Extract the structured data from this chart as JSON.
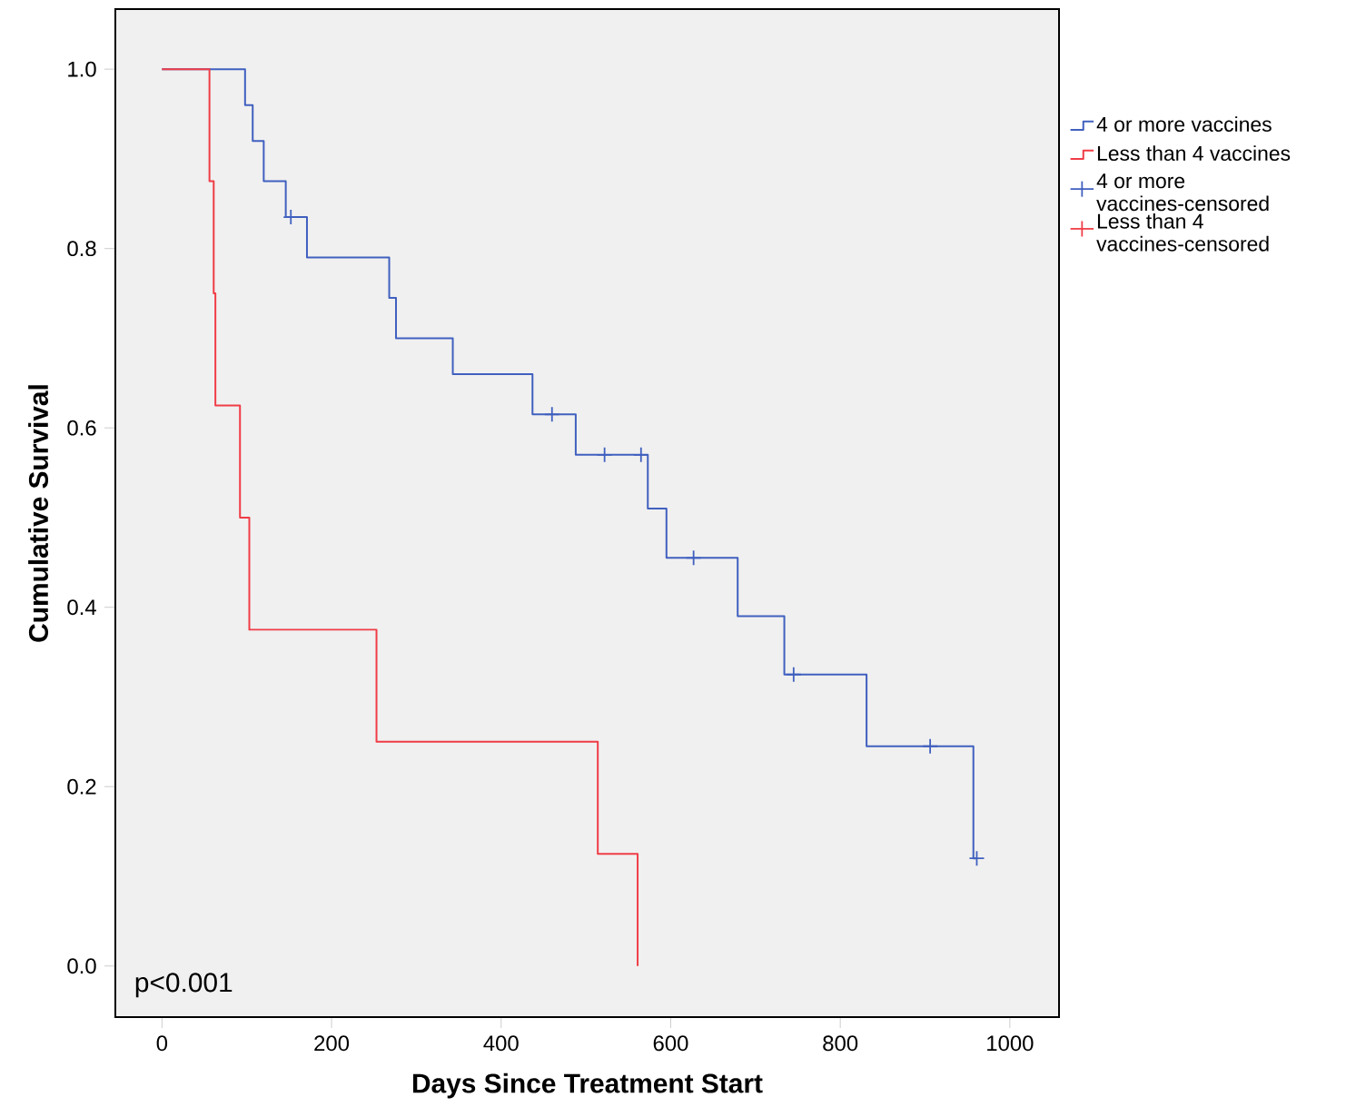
{
  "chart_data": {
    "type": "step",
    "xlabel": "Days Since Treatment Start",
    "ylabel": "Cumulative Survival",
    "annotations": [
      "p<0.001"
    ],
    "xlim": [
      -55,
      1058
    ],
    "ylim": [
      -0.057,
      1.067
    ],
    "xticks": [
      0,
      200,
      400,
      600,
      800,
      1000
    ],
    "yticks": [
      {
        "value": 0,
        "label": "0.0"
      },
      {
        "value": 0.2,
        "label": "0.2"
      },
      {
        "value": 0.4,
        "label": "0.4"
      },
      {
        "value": 0.6,
        "label": "0.6"
      },
      {
        "value": 0.8,
        "label": "0.8"
      },
      {
        "value": 1,
        "label": "1.0"
      }
    ],
    "legend": "right",
    "grid": false,
    "series": [
      {
        "name": "4 or more vaccines",
        "color": "#4060bf",
        "x": [
          0,
          98,
          107,
          120,
          146,
          171,
          268,
          276,
          343,
          437,
          488,
          573,
          595,
          679,
          734,
          831,
          957,
          961
        ],
        "values": [
          1,
          0.96,
          0.92,
          0.875,
          0.835,
          0.79,
          0.745,
          0.7,
          0.66,
          0.615,
          0.57,
          0.51,
          0.455,
          0.39,
          0.325,
          0.245,
          0.12,
          0.12
        ]
      },
      {
        "name": "Less than 4 vaccines",
        "color": "#f03c46",
        "x": [
          0,
          56,
          61,
          63,
          92,
          103,
          253,
          514,
          561
        ],
        "values": [
          1,
          0.875,
          0.75,
          0.625,
          0.5,
          0.375,
          0.25,
          0.125,
          0
        ]
      },
      {
        "name": "4 or more vaccines-censored",
        "type": "scatter",
        "marker": "cross",
        "color": "#4060bf",
        "x": [
          152,
          460,
          522,
          565,
          627,
          745,
          906,
          961
        ],
        "values": [
          0.835,
          0.615,
          0.57,
          0.57,
          0.455,
          0.325,
          0.245,
          0.12
        ]
      },
      {
        "name": "Less than 4 vaccines-censored",
        "type": "scatter",
        "marker": "cross",
        "color": "#f03c46"
      }
    ]
  }
}
